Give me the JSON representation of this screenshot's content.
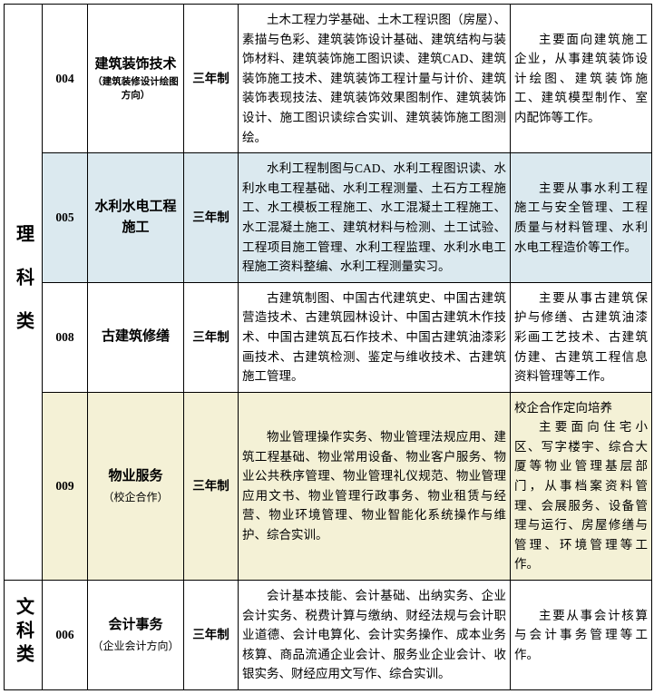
{
  "categories": {
    "science": "理科类",
    "liberal": "文科类"
  },
  "duration": "三年制",
  "colors": {
    "bg_blue": "#dbe9ef",
    "bg_yellow": "#f4f1d6",
    "border": "#000000",
    "text": "#000000",
    "background": "#ffffff"
  },
  "rows": [
    {
      "code": "004",
      "major_main": "建筑装饰技术",
      "major_sub": "（建筑装修设计绘图方向）",
      "courses": "土木工程力学基础、土木工程识图（房屋）、素描与色彩、建筑装饰设计基础、建筑结构与装饰材料、建筑装饰施工图识读、建筑CAD、建筑装饰施工技术、建筑装饰工程计量与计价、建筑装饰表现技法、建筑装饰效果图制作、建筑装饰设计、施工图识读综合实训、建筑装饰施工图测绘。",
      "jobs": "主要面向建筑施工企业，从事建筑装饰设计绘图、建筑装饰施工、建筑模型制作、室内配饰等工作。"
    },
    {
      "code": "005",
      "major_main": "水利水电工程施工",
      "major_sub": "",
      "courses": "水利工程制图与CAD、水利工程图识读、水利水电工程基础、水利工程测量、土石方工程施工、水工模板工程施工、水工混凝土工程施工、水工混凝土施工、建筑材料与检测、土工试验、工程项目施工管理、水利工程监理、水利水电工程施工资料整编、水利工程测量实习。",
      "jobs": "主要从事水利工程施工与安全管理、工程质量与材料管理、水利水电工程造价等工作。"
    },
    {
      "code": "008",
      "major_main": "古建筑修缮",
      "major_sub": "",
      "courses": "古建筑制图、中国古代建筑史、中国古建筑营造技术、古建筑园林设计、中国古建筑木作技术、中国古建筑瓦石作技术、中国古建筑油漆彩画技术、古建筑检测、鉴定与维收技术、古建筑施工管理。",
      "jobs": "主要从事古建筑保护与修缮、古建筑油漆彩画工艺技术、古建筑仿建、古建筑工程信息资料管理等工作。"
    },
    {
      "code": "009",
      "major_main": "物业服务",
      "major_sub": "（校企合作）",
      "courses": "物业管理操作实务、物业管理法规应用、建筑工程基础、物业常用设备、物业客户服务、物业公共秩序管理、物业管理礼仪规范、物业管理应用文书、物业管理行政事务、物业租赁与经营、物业环境管理、物业智能化系统操作与维护、综合实训。",
      "jobs_pre": "校企合作定向培养",
      "jobs": "主要面向住宅小区、写字楼宇、综合大厦等物业管理基层部门，从事档案资料管理、会展服务、设备管理与运行、房屋修缮与管理、环境管理等工作。"
    },
    {
      "code": "006",
      "major_main": "会计事务",
      "major_sub": "（企业会计方向）",
      "courses": "会计基本技能、会计基础、出纳实务、企业会计实务、税费计算与缴纳、财经法规与会计职业道德、会计电算化、会计实务操作、成本业务核算、商品流通企业会计、服务业企业会计、收银实务、财经应用文写作、综合实训。",
      "jobs": "主要从事会计核算与会计事务管理等工作。"
    }
  ]
}
